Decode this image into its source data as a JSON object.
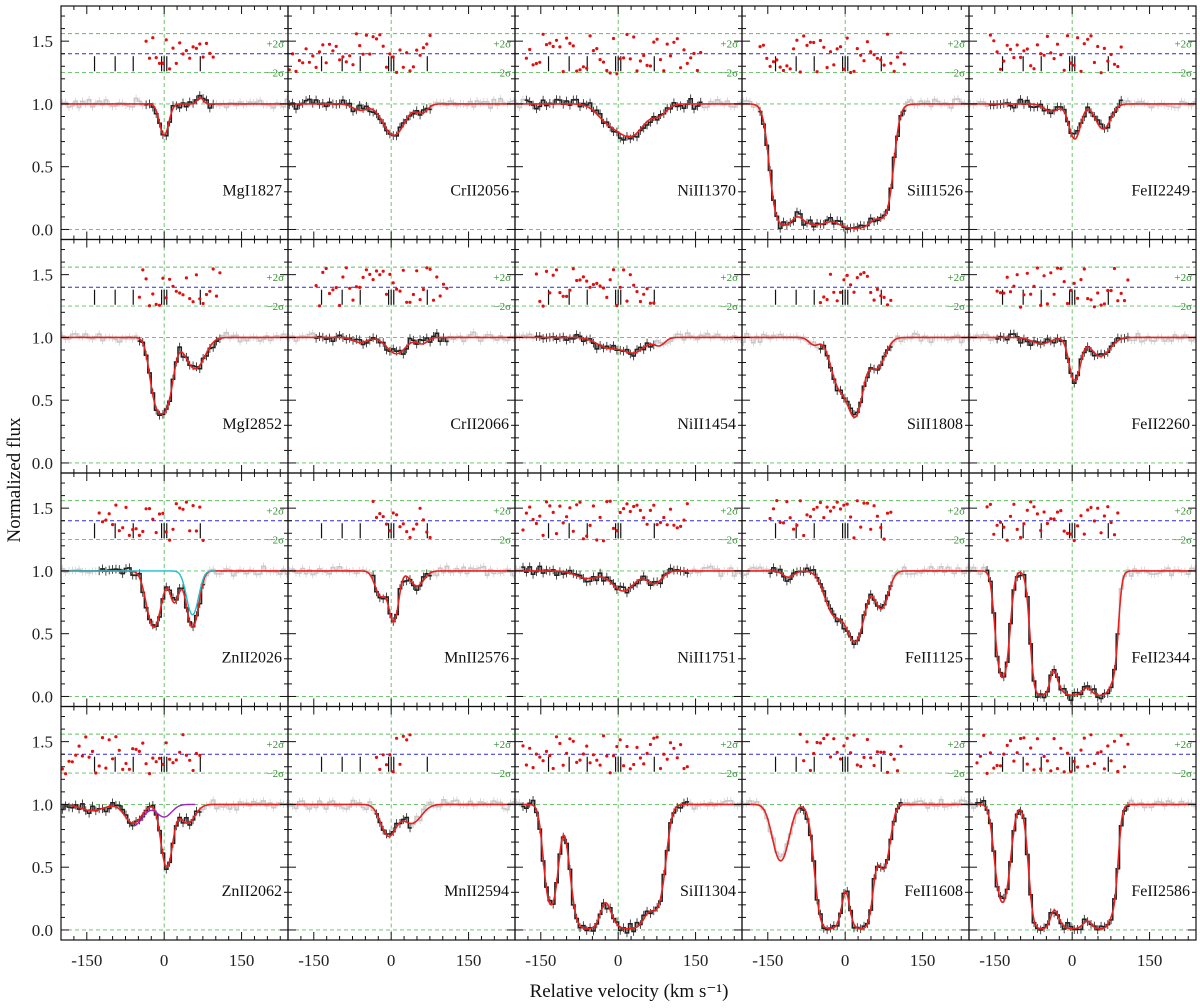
{
  "figure": {
    "xlabel": "Relative velocity (km s⁻¹)",
    "ylabel": "Normalized flux",
    "sigma_plus_label": "+2σ",
    "sigma_minus_label": "−2σ"
  },
  "chart_data": {
    "type": "line",
    "grid_rows": 4,
    "grid_cols": 5,
    "xlim": [
      -200,
      240
    ],
    "ylim": [
      -0.08,
      1.78
    ],
    "x_ticks": [
      -150,
      0,
      150
    ],
    "x_tick_labels": [
      "-150",
      "0",
      "150"
    ],
    "y_ticks": [
      0.0,
      0.5,
      1.0,
      1.5
    ],
    "y_tick_labels": [
      "0.0",
      "0.5",
      "1.0",
      "1.5"
    ],
    "residual_zero": 1.4,
    "residual_plus_2sigma": 1.56,
    "residual_minus_2sigma": 1.25,
    "component_velocities": [
      -135,
      -95,
      -60,
      -5,
      0,
      5,
      70
    ],
    "colors": {
      "model": "#e8211f",
      "data": "#222222",
      "masked": "#c8c8c8",
      "residual": "#e01010",
      "grid": "#5fbf5f",
      "zero": "#2b2bdb",
      "secondary": "#19c0c8",
      "tertiary": "#a020c0"
    },
    "panels": [
      {
        "label": "MgI1827",
        "comps": [
          [
            0,
            0.25,
            12
          ],
          [
            70,
            -0.05,
            8
          ]
        ],
        "fit": [
          -40,
          100
        ]
      },
      {
        "label": "CrII2056",
        "comps": [
          [
            -60,
            0.05,
            20
          ],
          [
            5,
            0.25,
            28
          ],
          [
            60,
            0.07,
            15
          ]
        ],
        "fit": [
          -200,
          80
        ]
      },
      {
        "label": "NiII1370",
        "comps": [
          [
            -20,
            0.12,
            30
          ],
          [
            25,
            0.25,
            35
          ],
          [
            80,
            0.08,
            20
          ]
        ],
        "fit": [
          -180,
          160
        ]
      },
      {
        "label": "SiII1526",
        "comps": [
          [
            -120,
            0.95,
            22
          ],
          [
            -60,
            0.96,
            40
          ],
          [
            20,
            0.99,
            40
          ],
          [
            75,
            0.8,
            18
          ]
        ],
        "fit": [
          -170,
          120
        ]
      },
      {
        "label": "FeII2249",
        "comps": [
          [
            -40,
            0.06,
            20
          ],
          [
            5,
            0.28,
            15
          ],
          [
            60,
            0.2,
            20
          ]
        ],
        "fit": [
          -160,
          100
        ]
      },
      {
        "label": "MgI2852",
        "comps": [
          [
            -15,
            0.5,
            16
          ],
          [
            5,
            0.5,
            16
          ],
          [
            60,
            0.25,
            25
          ]
        ],
        "fit": [
          -50,
          110
        ]
      },
      {
        "label": "CrII2066",
        "comps": [
          [
            -60,
            0.04,
            20
          ],
          [
            10,
            0.13,
            25
          ],
          [
            60,
            0.05,
            15
          ]
        ],
        "fit": [
          -150,
          110
        ]
      },
      {
        "label": "NiII1454",
        "comps": [
          [
            -20,
            0.08,
            30
          ],
          [
            30,
            0.12,
            30
          ],
          [
            80,
            0.06,
            15
          ]
        ],
        "fit": [
          -160,
          70
        ]
      },
      {
        "label": "SiII1808",
        "comps": [
          [
            -60,
            0.06,
            14
          ],
          [
            -10,
            0.4,
            22
          ],
          [
            20,
            0.6,
            18
          ],
          [
            60,
            0.25,
            22
          ]
        ],
        "fit": [
          -50,
          90
        ]
      },
      {
        "label": "FeII2260",
        "comps": [
          [
            -60,
            0.05,
            25
          ],
          [
            5,
            0.35,
            14
          ],
          [
            55,
            0.15,
            25
          ]
        ],
        "fit": [
          -150,
          110
        ]
      },
      {
        "label": "ZnII2026",
        "comps": [
          [
            -20,
            0.45,
            18
          ],
          [
            20,
            0.25,
            12
          ],
          [
            55,
            0.45,
            15
          ]
        ],
        "fit": [
          -130,
          80
        ],
        "extra": {
          "color": "secondary",
          "comps": [
            [
              55,
              0.35,
              15
            ]
          ]
        }
      },
      {
        "label": "MnII2576",
        "comps": [
          [
            -20,
            0.2,
            15
          ],
          [
            5,
            0.4,
            12
          ],
          [
            50,
            0.12,
            18
          ]
        ],
        "fit": [
          -40,
          80
        ]
      },
      {
        "label": "NiII1751",
        "comps": [
          [
            -60,
            0.06,
            30
          ],
          [
            10,
            0.16,
            30
          ],
          [
            70,
            0.1,
            20
          ]
        ],
        "fit": [
          -190,
          140
        ]
      },
      {
        "label": "FeII1125",
        "comps": [
          [
            -110,
            0.05,
            15
          ],
          [
            -20,
            0.35,
            25
          ],
          [
            20,
            0.55,
            22
          ],
          [
            70,
            0.3,
            18
          ]
        ],
        "fit": [
          -150,
          90
        ]
      },
      {
        "label": "FeII2344",
        "comps": [
          [
            -135,
            0.85,
            14
          ],
          [
            -60,
            0.99,
            16
          ],
          [
            0,
            0.99,
            30
          ],
          [
            55,
            0.99,
            20
          ],
          [
            80,
            0.6,
            10
          ]
        ],
        "fit": [
          -170,
          90
        ]
      },
      {
        "label": "ZnII2062",
        "comps": [
          [
            -140,
            0.05,
            30
          ],
          [
            -60,
            0.15,
            22
          ],
          [
            5,
            0.5,
            14
          ],
          [
            45,
            0.15,
            20
          ]
        ],
        "fit": [
          -200,
          70
        ],
        "extra": {
          "color": "tertiary",
          "comps": [
            [
              -60,
              0.17,
              25
            ],
            [
              0,
              0.1,
              20
            ]
          ]
        }
      },
      {
        "label": "MnII2594",
        "comps": [
          [
            -5,
            0.25,
            20
          ],
          [
            40,
            0.15,
            25
          ]
        ],
        "fit": [
          -30,
          40
        ]
      },
      {
        "label": "SiII1304",
        "comps": [
          [
            -130,
            0.8,
            15
          ],
          [
            -60,
            0.99,
            25
          ],
          [
            20,
            0.99,
            35
          ],
          [
            75,
            0.75,
            18
          ]
        ],
        "fit": [
          -190,
          140
        ]
      },
      {
        "label": "FeII1608",
        "comps": [
          [
            -125,
            0.45,
            20
          ],
          [
            -30,
            0.99,
            22
          ],
          [
            30,
            0.99,
            20
          ],
          [
            75,
            0.5,
            15
          ]
        ],
        "fit": [
          -90,
          110
        ]
      },
      {
        "label": "FeII2586",
        "comps": [
          [
            -135,
            0.78,
            16
          ],
          [
            -60,
            0.99,
            18
          ],
          [
            0,
            0.99,
            30
          ],
          [
            55,
            0.99,
            20
          ],
          [
            80,
            0.55,
            10
          ]
        ],
        "fit": [
          -190,
          110
        ]
      }
    ]
  }
}
